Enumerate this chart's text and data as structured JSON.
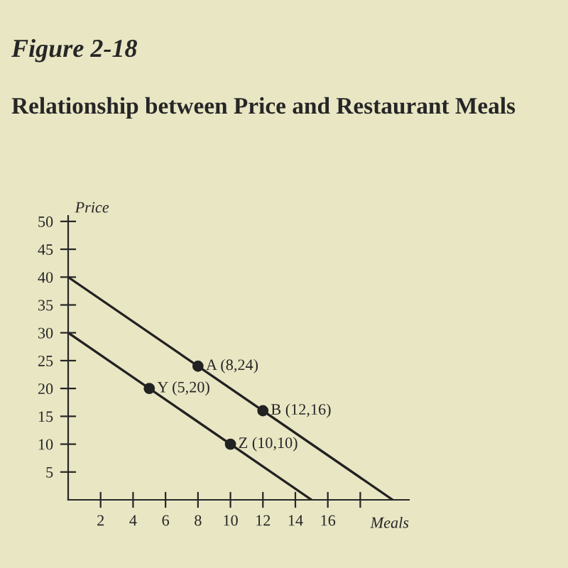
{
  "chart_data": {
    "type": "line",
    "title": "Relationship between Price and Restaurant Meals",
    "xlabel": "Meals",
    "ylabel": "Price",
    "annotations": [
      "Figure 2-18",
      {
        "text": "A (8,24)",
        "x": 8,
        "y": 24
      },
      {
        "text": "B (12,16)",
        "x": 12,
        "y": 16
      },
      {
        "text": "Y (5,20)",
        "x": 5,
        "y": 20
      },
      {
        "text": "Z (10,10)",
        "x": 10,
        "y": 10
      }
    ],
    "series": [
      {
        "color": "#222222",
        "x": [
          0,
          20
        ],
        "values": [
          40,
          0
        ],
        "marker": "none"
      },
      {
        "color": "#222222",
        "x": [
          0,
          15
        ],
        "values": [
          30,
          0
        ],
        "marker": "none"
      },
      {
        "type": "scatter",
        "color": "#222222",
        "x": [
          8,
          12,
          5,
          10
        ],
        "values": [
          24,
          16,
          20,
          10
        ],
        "marker": "circle"
      }
    ],
    "xlim": [
      0,
      21
    ],
    "ylim": [
      0,
      51
    ],
    "xticks": [
      2,
      4,
      6,
      8,
      10,
      12,
      14,
      16,
      {
        "value": 18,
        "label": null
      }
    ],
    "yticks": [
      5,
      10,
      15,
      20,
      25,
      30,
      35,
      40,
      45,
      50
    ],
    "grid": false,
    "legend": false,
    "line_style": "solid"
  }
}
